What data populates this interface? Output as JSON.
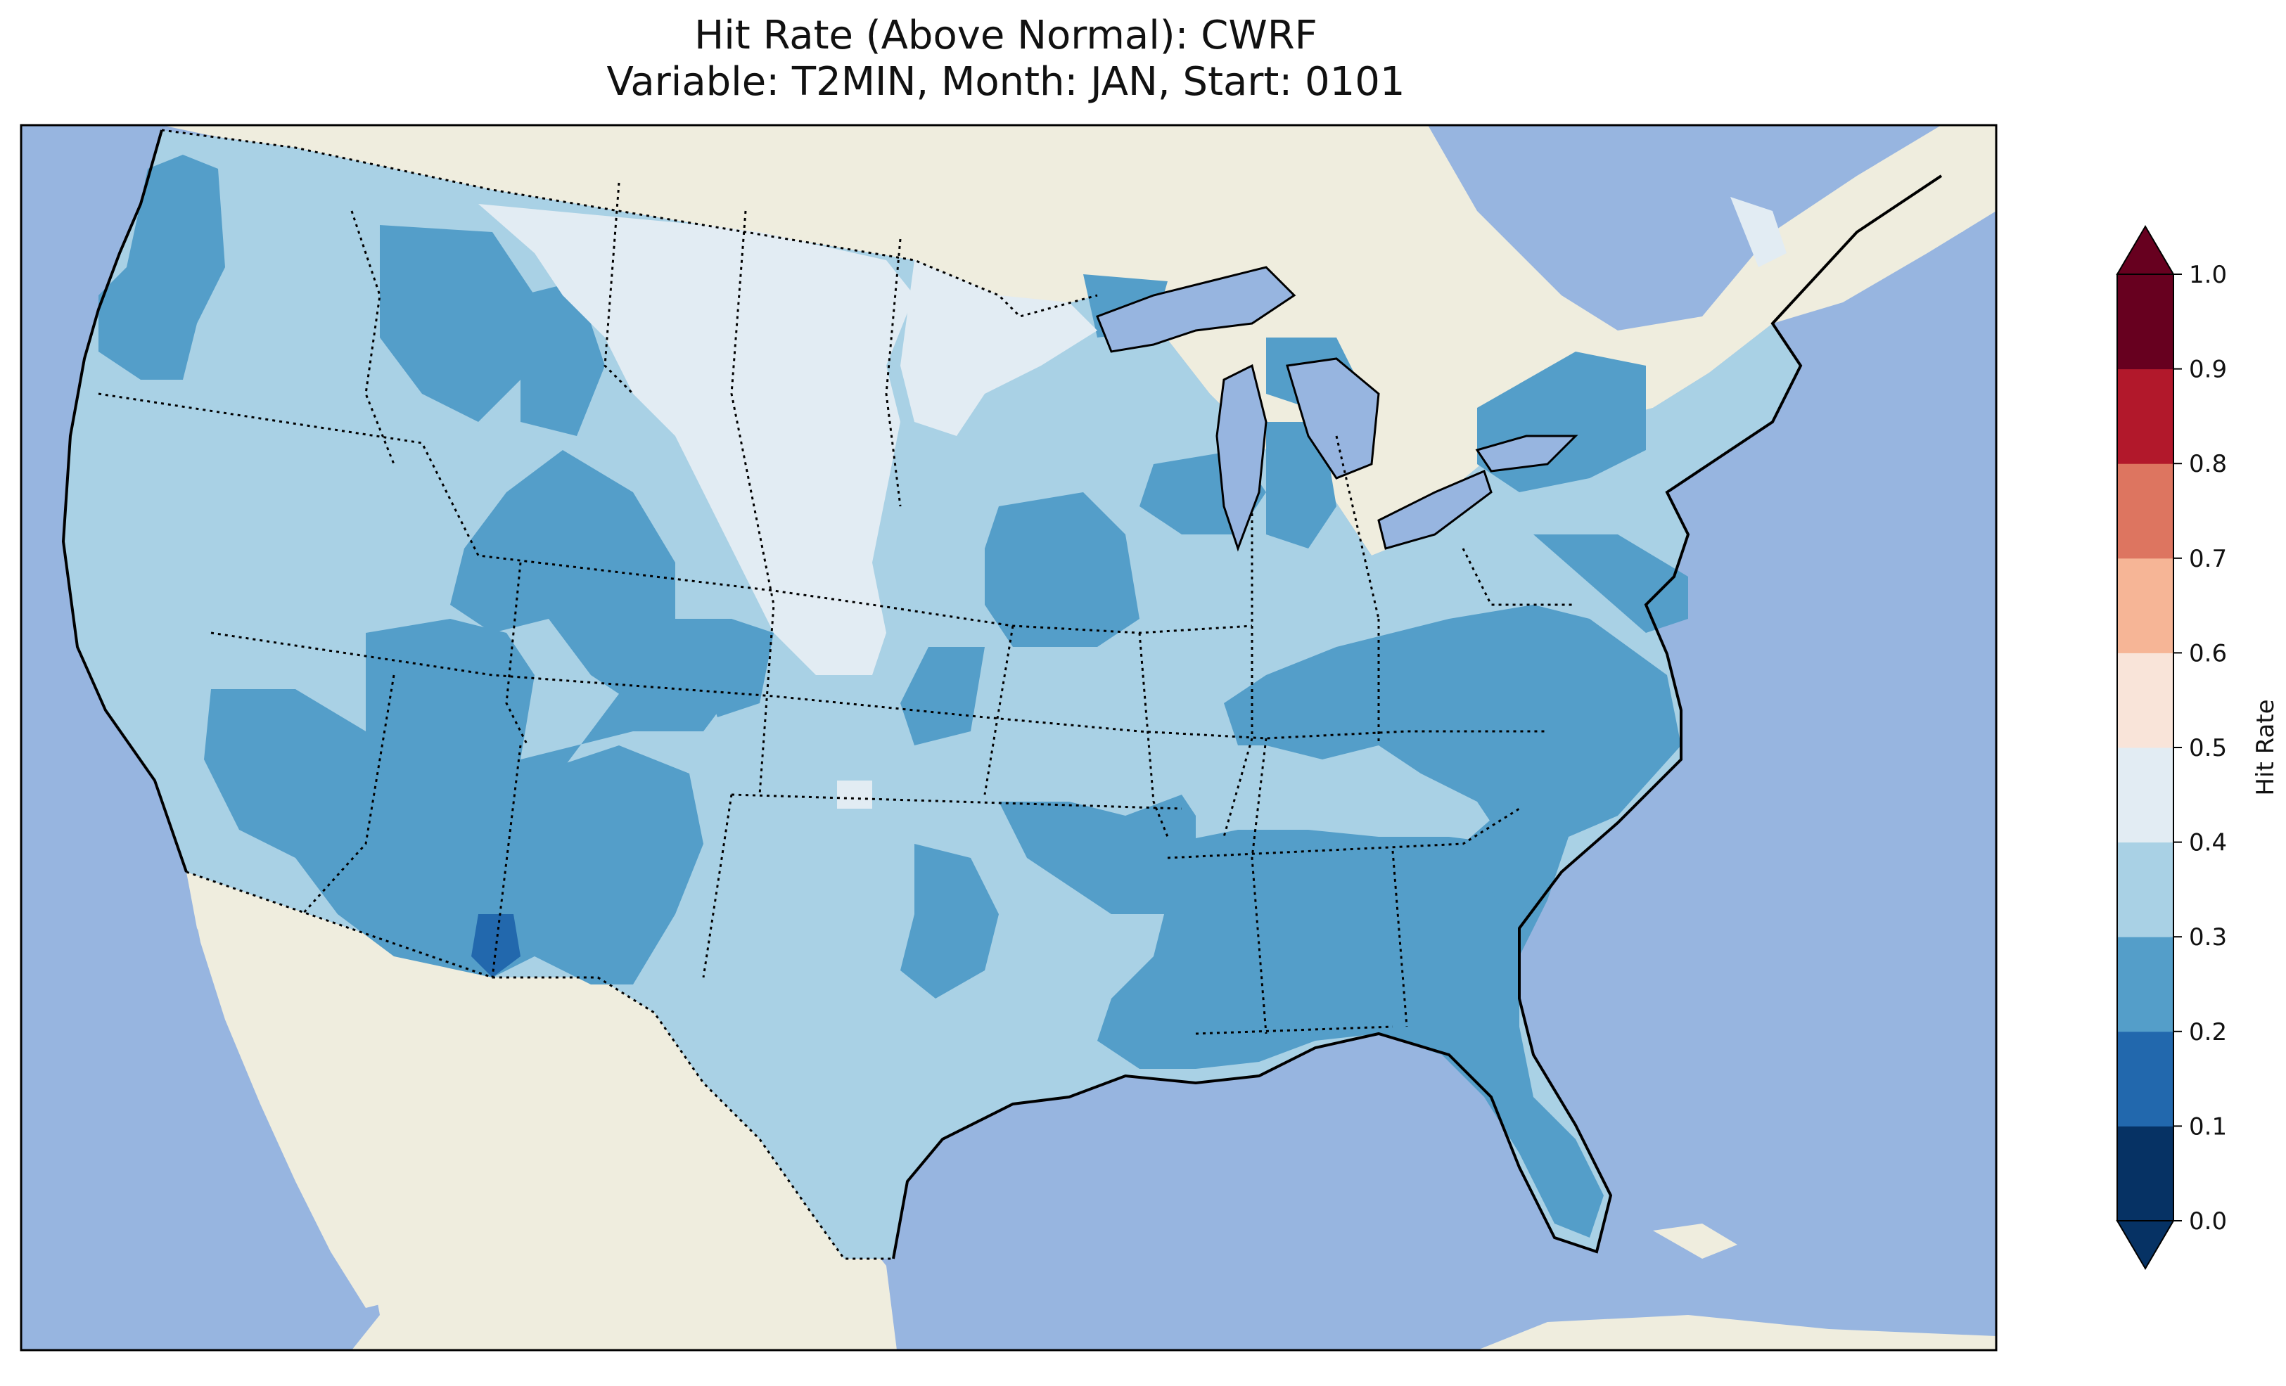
{
  "title": {
    "line1": "Hit Rate (Above Normal): CWRF",
    "line2": "Variable: T2MIN, Month: JAN, Start: 0101"
  },
  "colors": {
    "ocean": "#97b5e0",
    "land": "#efedde",
    "level_0_1": "#063264",
    "level_1_2": "#2268ad",
    "level_2_3": "#549ec9",
    "level_3_4": "#a9d1e5",
    "level_4_5": "#e2ecf3",
    "level_5_6": "#f9e4d9",
    "level_6_7": "#f6b596",
    "level_7_8": "#dd7560",
    "level_8_9": "#b2182b",
    "level_9_10": "#67001f"
  },
  "colorbar": {
    "label": "Hit Rate",
    "ticks": [
      "0.0",
      "0.1",
      "0.2",
      "0.3",
      "0.4",
      "0.5",
      "0.6",
      "0.7",
      "0.8",
      "0.9",
      "1.0"
    ],
    "colors": [
      "#063264",
      "#2268ad",
      "#549ec9",
      "#a9d1e5",
      "#e2ecf3",
      "#f9e4d9",
      "#f6b596",
      "#dd7560",
      "#b2182b",
      "#67001f"
    ],
    "extend": "both"
  },
  "map": {
    "region": "Contiguous United States",
    "projection": "Lambert Conformal",
    "features": [
      "coastlines",
      "state borders",
      "country borders",
      "lakes"
    ]
  }
}
